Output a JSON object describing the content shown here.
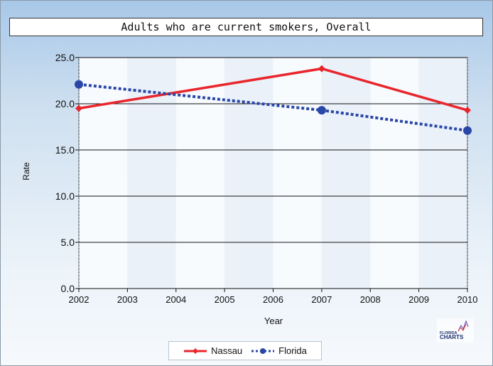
{
  "chart_data": {
    "type": "line",
    "title": "Adults who are current smokers, Overall",
    "xlabel": "Year",
    "ylabel": "Rate",
    "categories": [
      "2002",
      "2003",
      "2004",
      "2005",
      "2006",
      "2007",
      "2008",
      "2009",
      "2010"
    ],
    "x": [
      2002,
      2007,
      2010
    ],
    "ylim": [
      0,
      25
    ],
    "yticks": [
      "0.0",
      "5.0",
      "10.0",
      "15.0",
      "20.0",
      "25.0"
    ],
    "grid": true,
    "legend_position": "bottom",
    "series": [
      {
        "name": "Nassau",
        "values": [
          19.5,
          23.8,
          19.3
        ],
        "color": "#e8262c",
        "style": "solid",
        "marker": "diamond"
      },
      {
        "name": "Florida",
        "values": [
          22.1,
          19.3,
          17.1
        ],
        "color": "#2a47a8",
        "style": "dotted",
        "marker": "circle"
      }
    ]
  },
  "logo": {
    "line1": "FLORIDA",
    "line2": "CHARTS"
  }
}
